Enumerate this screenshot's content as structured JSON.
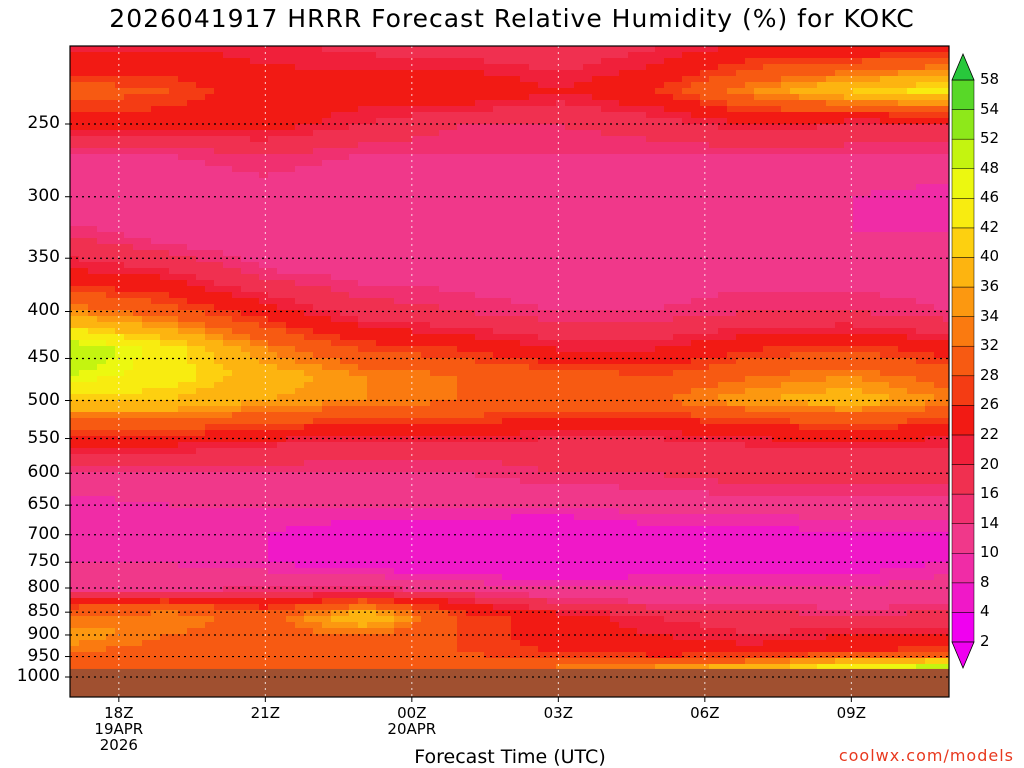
{
  "chart_data": {
    "type": "heatmap",
    "title": "2026041917 HRRR Forecast Relative Humidity (%) for KOKC",
    "xlabel": "Forecast Time (UTC)",
    "ylabel": "",
    "x_ticks": [
      {
        "hours": 0,
        "lines": [
          "18Z",
          "19APR",
          "2026"
        ]
      },
      {
        "hours": 3,
        "lines": [
          "21Z"
        ]
      },
      {
        "hours": 6,
        "lines": [
          "00Z",
          "20APR"
        ]
      },
      {
        "hours": 9,
        "lines": [
          "03Z"
        ]
      },
      {
        "hours": 12,
        "lines": [
          "06Z"
        ]
      },
      {
        "hours": 15,
        "lines": [
          "09Z"
        ]
      }
    ],
    "x_range": [
      -1,
      17
    ],
    "y_scale": "pressure (hPa), reversed",
    "y_ticks": [
      250,
      300,
      350,
      400,
      450,
      500,
      550,
      600,
      650,
      700,
      750,
      800,
      850,
      900,
      950,
      1000
    ],
    "colorbar": {
      "levels": [
        2,
        4,
        8,
        10,
        14,
        16,
        20,
        22,
        26,
        28,
        32,
        34,
        36,
        40,
        42,
        46,
        48,
        52,
        54,
        58
      ],
      "colors": [
        "#f000f0",
        "#f018c8",
        "#f02ca6",
        "#f0388a",
        "#f03070",
        "#f03050",
        "#f0203a",
        "#f21a14",
        "#f43c14",
        "#f75a12",
        "#fa7a10",
        "#fc9810",
        "#fdb410",
        "#fdd010",
        "#f8ec10",
        "#ecf810",
        "#c4f410",
        "#8ee81a",
        "#58d828",
        "#28c83c"
      ]
    },
    "rh_grid": {
      "x_hours": [
        -1,
        1,
        3,
        5,
        7,
        9,
        11,
        13,
        15,
        17
      ],
      "pressures": [
        200,
        230,
        250,
        270,
        300,
        330,
        360,
        400,
        440,
        470,
        500,
        530,
        560,
        600,
        650,
        700,
        750,
        800,
        830,
        860,
        900,
        940,
        975
      ],
      "values": [
        [
          18,
          20,
          20,
          18,
          16,
          16,
          18,
          20,
          18,
          18
        ],
        [
          30,
          28,
          24,
          24,
          26,
          22,
          26,
          34,
          40,
          44
        ],
        [
          24,
          24,
          24,
          20,
          16,
          16,
          18,
          22,
          20,
          20
        ],
        [
          14,
          14,
          16,
          14,
          14,
          14,
          14,
          14,
          14,
          14
        ],
        [
          10,
          10,
          12,
          10,
          12,
          10,
          10,
          12,
          10,
          8
        ],
        [
          16,
          12,
          10,
          10,
          10,
          10,
          10,
          10,
          10,
          10
        ],
        [
          22,
          20,
          14,
          12,
          12,
          10,
          12,
          12,
          12,
          12
        ],
        [
          34,
          30,
          24,
          18,
          16,
          14,
          14,
          16,
          16,
          14
        ],
        [
          52,
          44,
          34,
          28,
          26,
          22,
          22,
          26,
          28,
          24
        ],
        [
          48,
          44,
          38,
          34,
          32,
          30,
          28,
          32,
          34,
          30
        ],
        [
          40,
          40,
          36,
          34,
          32,
          32,
          32,
          36,
          38,
          34
        ],
        [
          30,
          30,
          28,
          26,
          26,
          24,
          24,
          26,
          28,
          26
        ],
        [
          22,
          22,
          20,
          18,
          18,
          18,
          18,
          20,
          20,
          20
        ],
        [
          14,
          14,
          14,
          14,
          14,
          16,
          16,
          18,
          18,
          18
        ],
        [
          8,
          10,
          10,
          10,
          10,
          10,
          12,
          12,
          12,
          12
        ],
        [
          10,
          8,
          8,
          6,
          6,
          4,
          6,
          6,
          8,
          8
        ],
        [
          10,
          10,
          8,
          6,
          4,
          4,
          6,
          6,
          6,
          8
        ],
        [
          12,
          12,
          14,
          14,
          12,
          10,
          10,
          10,
          10,
          12
        ],
        [
          26,
          28,
          24,
          30,
          22,
          16,
          14,
          14,
          12,
          14
        ],
        [
          32,
          34,
          30,
          40,
          28,
          24,
          20,
          18,
          16,
          18
        ],
        [
          36,
          32,
          30,
          32,
          28,
          24,
          22,
          20,
          22,
          22
        ],
        [
          32,
          30,
          30,
          30,
          28,
          26,
          24,
          24,
          26,
          28
        ],
        [
          32,
          30,
          28,
          30,
          30,
          32,
          34,
          38,
          44,
          50
        ]
      ]
    },
    "ground_below_hpa": 980
  },
  "ui": {
    "credit": "coolwx.com/models"
  },
  "colors": {
    "ground": "#a05030",
    "background": "#ffffff",
    "credit": "#e8391f"
  }
}
